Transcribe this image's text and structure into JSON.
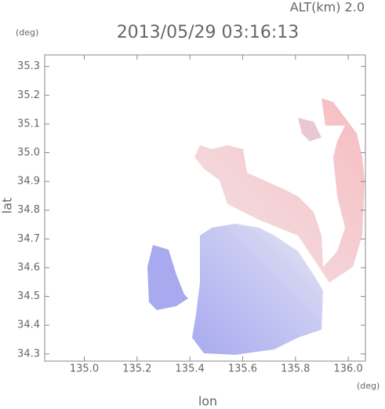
{
  "chart_data": {
    "type": "map",
    "title": "2013/05/29 03:16:13",
    "subtitle": "ALT(km) 2.0",
    "x_label": "lon",
    "y_label": "lat",
    "x_unit": "(deg)",
    "y_unit": "(deg)",
    "xlim": [
      134.85,
      136.065
    ],
    "ylim": [
      34.275,
      35.34
    ],
    "xticks": [
      {
        "value": 135,
        "label": "135.0"
      },
      135.2,
      135.4,
      135.6,
      135.8,
      {
        "value": 136,
        "label": "136.0"
      }
    ],
    "yticks": [
      34.3,
      34.4,
      34.5,
      34.6,
      34.7,
      34.8,
      34.9,
      {
        "value": 35,
        "label": "35.0"
      },
      35.1,
      35.2,
      35.3
    ]
  }
}
